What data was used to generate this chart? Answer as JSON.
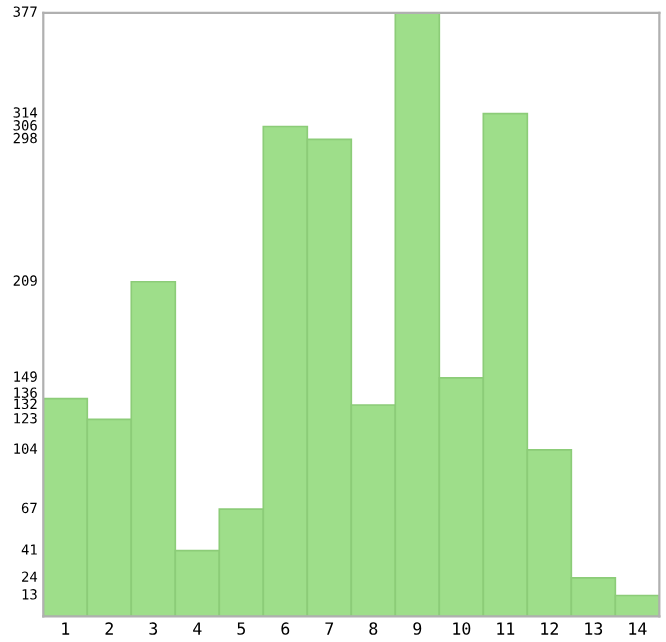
{
  "chart_data": {
    "type": "bar",
    "categories": [
      "1",
      "2",
      "3",
      "4",
      "5",
      "6",
      "7",
      "8",
      "9",
      "10",
      "11",
      "12",
      "13",
      "14"
    ],
    "values": [
      136,
      123,
      209,
      41,
      67,
      306,
      298,
      132,
      377,
      149,
      314,
      104,
      24,
      13
    ],
    "color": "#9ede8a",
    "ylim": [
      0,
      377
    ],
    "yticks": [
      13,
      24,
      41,
      67,
      104,
      123,
      132,
      136,
      149,
      209,
      298,
      306,
      314,
      377
    ],
    "grid": false
  }
}
